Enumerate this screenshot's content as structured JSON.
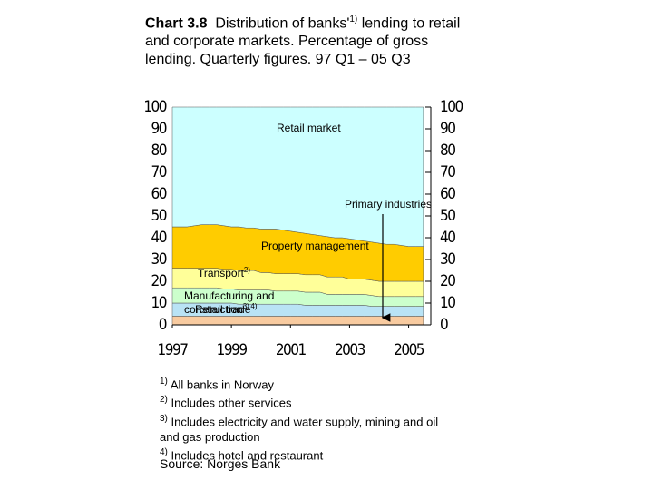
{
  "chart_data": {
    "type": "stacked_area",
    "title_label": "Chart 3.8",
    "title_before_note": "Distribution of banks'",
    "title_note": "1)",
    "title_after_note": " lending to retail and corporate markets. Percentage of gross lending. Quarterly figures. 97 Q1 – 05 Q3",
    "x": [
      1997,
      1997.25,
      1997.5,
      1997.75,
      1998,
      1998.25,
      1998.5,
      1998.75,
      1999,
      1999.25,
      1999.5,
      1999.75,
      2000,
      2000.25,
      2000.5,
      2000.75,
      2001,
      2001.25,
      2001.5,
      2001.75,
      2002,
      2002.25,
      2002.5,
      2002.75,
      2003,
      2003.25,
      2003.5,
      2003.75,
      2004,
      2004.25,
      2004.5,
      2004.75,
      2005,
      2005.25,
      2005.5
    ],
    "xlim": [
      1997,
      2005.75
    ],
    "xticks": [
      1997,
      1999,
      2001,
      2003,
      2005
    ],
    "ylim": [
      0,
      100
    ],
    "yticks": [
      0,
      10,
      20,
      30,
      40,
      50,
      60,
      70,
      80,
      90,
      100
    ],
    "series": [
      {
        "name": "Primary industries",
        "color": "#f8cba0",
        "values": [
          4,
          4,
          4,
          4,
          4,
          4,
          4,
          4,
          4,
          4,
          4,
          4,
          4,
          4,
          4,
          4,
          4,
          4,
          4,
          4,
          4,
          4,
          4,
          4,
          4,
          4,
          4,
          4,
          4,
          4,
          4,
          4,
          4,
          4,
          4
        ]
      },
      {
        "name": "Retail trade",
        "note": "4)",
        "color": "#b9e3f5",
        "values": [
          6,
          6,
          6,
          6,
          6,
          6,
          6,
          6,
          6,
          5.5,
          5.5,
          5.5,
          5.5,
          5.5,
          5.5,
          5.5,
          5.5,
          5.5,
          5,
          5,
          5,
          5,
          5,
          5,
          5,
          5,
          5,
          4.5,
          4.5,
          4.5,
          4.5,
          4.5,
          4.5,
          4.5,
          4.5
        ]
      },
      {
        "name": "Manufacturing and construction",
        "note": "3)",
        "color": "#ccffcc",
        "values": [
          7,
          7,
          7,
          7,
          7,
          7,
          7,
          6.5,
          6.5,
          6.5,
          6.5,
          6.5,
          6.5,
          6.5,
          6,
          6,
          6,
          6,
          6,
          6,
          6,
          5,
          5,
          5,
          5,
          5,
          5,
          5,
          4.5,
          4.5,
          4.5,
          4.5,
          4.5,
          4.5,
          4.5
        ]
      },
      {
        "name": "Transport",
        "note": "2)",
        "color": "#ffff99",
        "values": [
          9,
          9,
          9,
          9,
          9,
          9,
          9,
          9,
          9,
          9,
          9,
          9,
          8,
          8,
          8,
          8,
          8,
          8,
          8,
          8,
          8,
          8,
          8,
          8,
          7,
          7,
          7,
          7,
          7,
          7,
          7,
          7,
          7,
          7,
          7
        ]
      },
      {
        "name": "Property management",
        "color": "#ffcc00",
        "values": [
          19,
          19,
          19,
          19.5,
          20,
          20,
          20,
          20,
          19.5,
          20,
          19.5,
          19.5,
          20,
          20,
          20.5,
          20,
          19.5,
          19,
          19,
          18.5,
          18,
          18.5,
          18,
          18,
          18.5,
          18,
          17.5,
          17.5,
          17.5,
          17,
          17,
          16.5,
          16,
          16,
          16
        ]
      },
      {
        "name": "Retail market",
        "color": "#ccffff",
        "values": [
          55,
          55,
          55,
          54.5,
          54,
          54,
          54,
          54.5,
          55,
          55,
          55.5,
          55.5,
          56,
          56,
          56,
          56.5,
          57,
          57.5,
          58,
          58.5,
          59,
          59.5,
          60,
          60,
          60.5,
          61,
          61.5,
          62,
          62.5,
          63,
          63,
          63.5,
          64,
          64,
          64
        ]
      }
    ],
    "footnotes": [
      {
        "mark": "1)",
        "text": "All banks in Norway"
      },
      {
        "mark": "2)",
        "text": "Includes other services"
      },
      {
        "mark": "3)",
        "text": "Includes electricity and water supply, mining and oil and gas production"
      },
      {
        "mark": "4)",
        "text": "Includes hotel and restaurant"
      }
    ],
    "source": "Source: Norges Bank"
  }
}
